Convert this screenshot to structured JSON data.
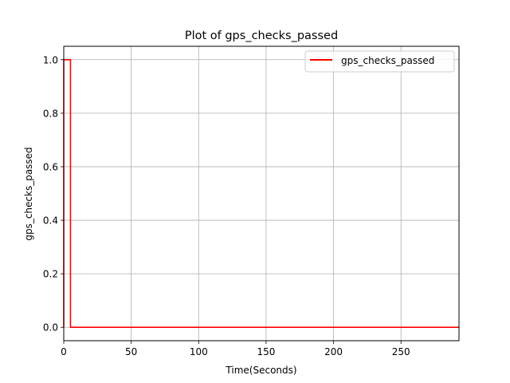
{
  "chart_data": {
    "type": "line",
    "title": "Plot of gps_checks_passed",
    "xlabel": "Time(Seconds)",
    "ylabel": "gps_checks_passed",
    "xlim": [
      0,
      293
    ],
    "ylim": [
      -0.05,
      1.05
    ],
    "xticks": [
      0,
      50,
      100,
      150,
      200,
      250
    ],
    "yticks": [
      0.0,
      0.2,
      0.4,
      0.6,
      0.8,
      1.0
    ],
    "xtick_labels": [
      "0",
      "50",
      "100",
      "150",
      "200",
      "250"
    ],
    "ytick_labels": [
      "0.0",
      "0.2",
      "0.4",
      "0.6",
      "0.8",
      "1.0"
    ],
    "grid": true,
    "legend_position": "top-right",
    "series": [
      {
        "name": "gps_checks_passed",
        "color": "#ff0000",
        "x": [
          0,
          0,
          5,
          5,
          293
        ],
        "y": [
          0,
          1,
          1,
          0,
          0
        ]
      }
    ]
  }
}
